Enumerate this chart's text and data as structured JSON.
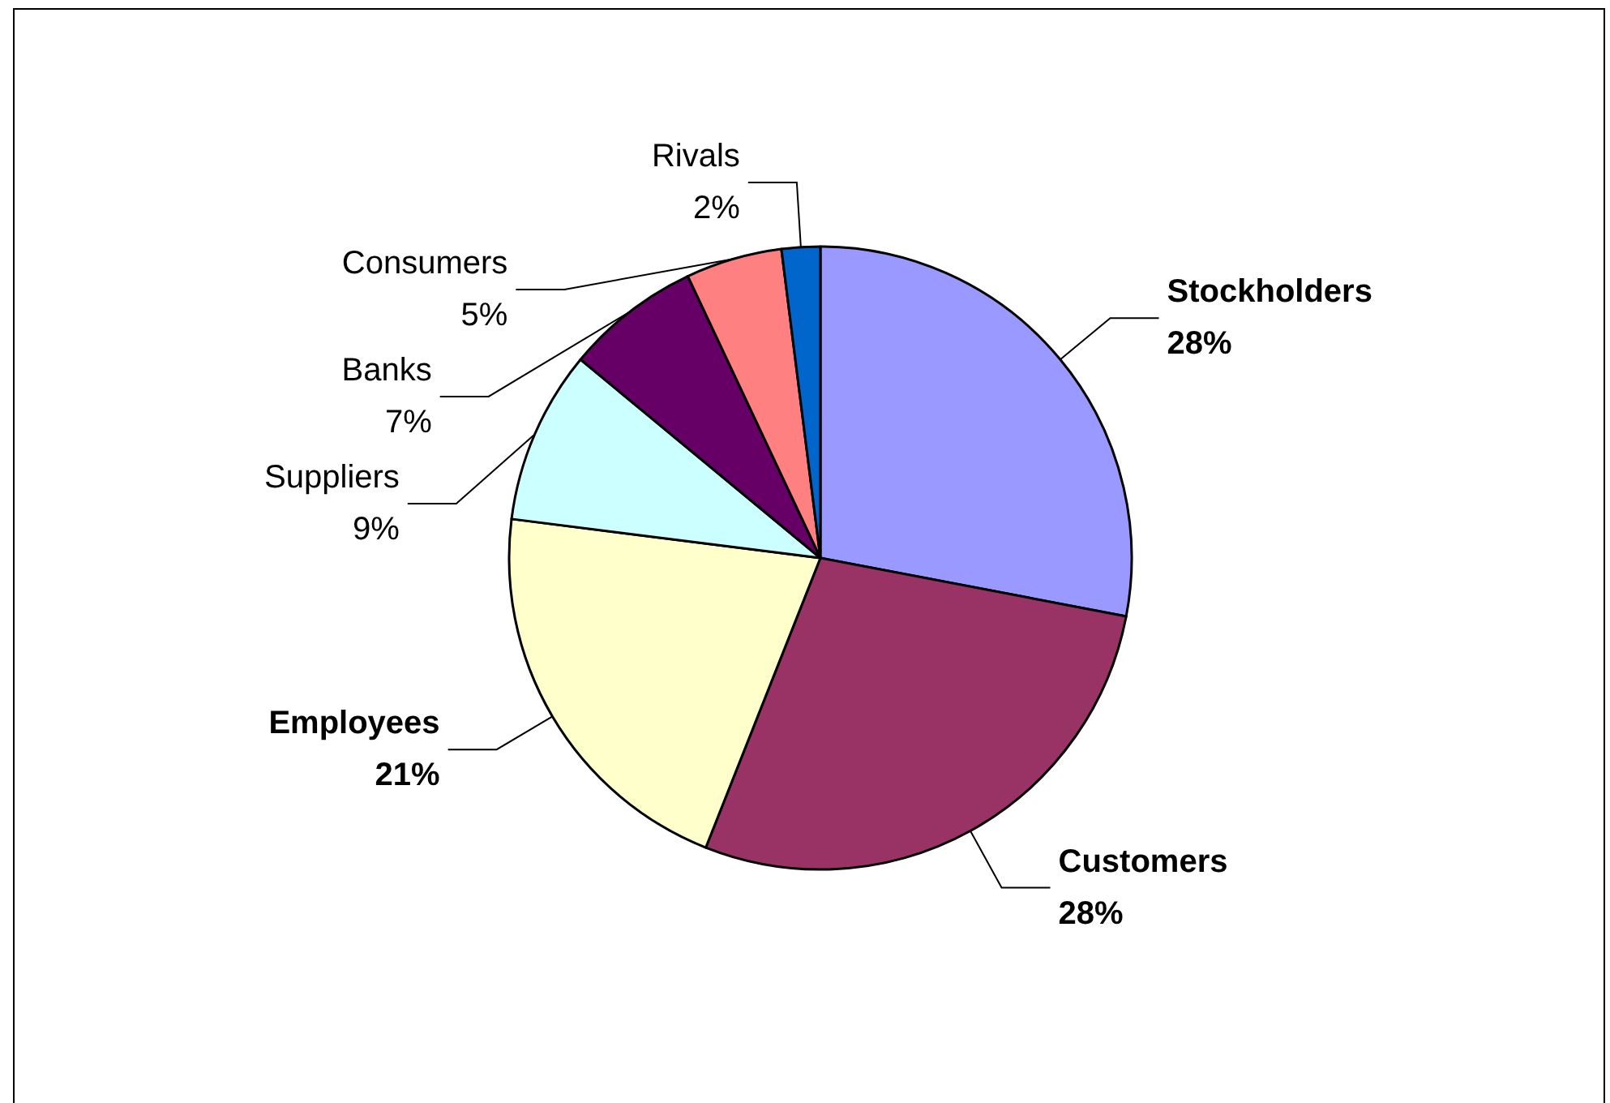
{
  "chart_data": {
    "type": "pie",
    "categories": [
      "Stockholders",
      "Customers",
      "Employees",
      "Suppliers",
      "Banks",
      "Consumers",
      "Rivals"
    ],
    "values": [
      28,
      28,
      21,
      9,
      7,
      5,
      2
    ],
    "value_labels": [
      "28%",
      "28%",
      "21%",
      "9%",
      "7%",
      "5%",
      "2%"
    ],
    "colors": [
      "#9999ff",
      "#993366",
      "#ffffcc",
      "#ccffff",
      "#660066",
      "#ff8080",
      "#0066cc"
    ],
    "legend": false
  }
}
